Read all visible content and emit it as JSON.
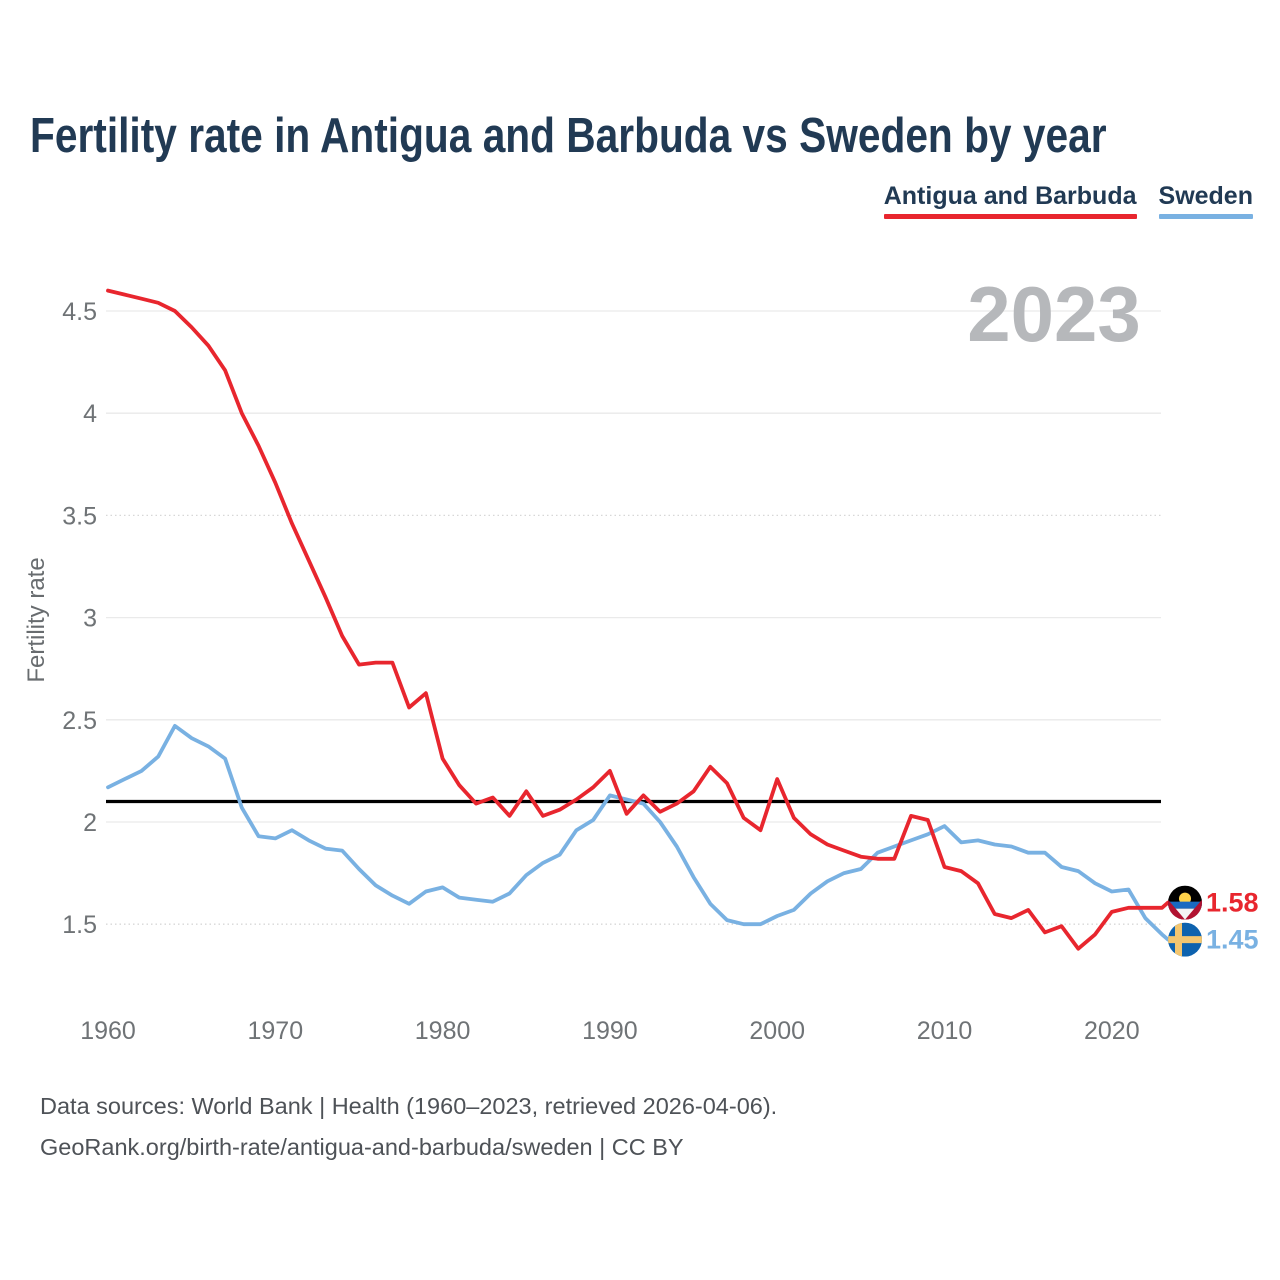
{
  "title": "Fertility rate in Antigua and Barbuda vs Sweden by year",
  "watermark": "2023",
  "legend": [
    {
      "label": "Antigua and Barbuda",
      "color": "#e8262e"
    },
    {
      "label": "Sweden",
      "color": "#79b1e2"
    }
  ],
  "end_labels": {
    "antigua": "1.58",
    "sweden": "1.45"
  },
  "footer": {
    "line1": "Data sources: World Bank | Health (1960–2023, retrieved 2026-04-06).",
    "line2": "GeoRank.org/birth-rate/antigua-and-barbuda/sweden | CC BY"
  },
  "colors": {
    "antigua_line": "#e8262e",
    "sweden_line": "#79b1e2",
    "title_text": "#213a54",
    "tick_text": "#6f7376",
    "gridline": "#eaeaea",
    "reference_line": "#000000",
    "watermark": "#b6b8bb"
  },
  "chart_data": {
    "type": "line",
    "title": "Fertility rate in Antigua and Barbuda vs Sweden by year",
    "xlabel": "",
    "ylabel": "Fertility rate",
    "x_range": [
      1960,
      2023
    ],
    "ylim": [
      1.3,
      4.65
    ],
    "grid": true,
    "legend_position": "top-right",
    "reference_line": {
      "value": 2.1,
      "meaning": "replacement-level fertility"
    },
    "current_year_label": "2023",
    "x": [
      1960,
      1961,
      1962,
      1963,
      1964,
      1965,
      1966,
      1967,
      1968,
      1969,
      1970,
      1971,
      1972,
      1973,
      1974,
      1975,
      1976,
      1977,
      1978,
      1979,
      1980,
      1981,
      1982,
      1983,
      1984,
      1985,
      1986,
      1987,
      1988,
      1989,
      1990,
      1991,
      1992,
      1993,
      1994,
      1995,
      1996,
      1997,
      1998,
      1999,
      2000,
      2001,
      2002,
      2003,
      2004,
      2005,
      2006,
      2007,
      2008,
      2009,
      2010,
      2011,
      2012,
      2013,
      2014,
      2015,
      2016,
      2017,
      2018,
      2019,
      2020,
      2021,
      2022,
      2023
    ],
    "series": [
      {
        "name": "Antigua and Barbuda",
        "color": "#e8262e",
        "end_value": 1.58,
        "values": [
          4.6,
          4.58,
          4.56,
          4.54,
          4.5,
          4.42,
          4.33,
          4.21,
          4.0,
          3.84,
          3.66,
          3.46,
          3.28,
          3.1,
          2.91,
          2.77,
          2.78,
          2.78,
          2.56,
          2.63,
          2.31,
          2.18,
          2.09,
          2.12,
          2.03,
          2.15,
          2.03,
          2.06,
          2.11,
          2.17,
          2.25,
          2.04,
          2.13,
          2.05,
          2.09,
          2.15,
          2.27,
          2.19,
          2.02,
          1.96,
          2.21,
          2.02,
          1.94,
          1.89,
          1.86,
          1.83,
          1.82,
          1.82,
          2.03,
          2.01,
          1.78,
          1.76,
          1.7,
          1.55,
          1.53,
          1.57,
          1.46,
          1.49,
          1.38,
          1.45,
          1.56,
          1.58,
          1.58,
          1.58
        ]
      },
      {
        "name": "Sweden",
        "color": "#79b1e2",
        "end_value": 1.45,
        "values": [
          2.17,
          2.21,
          2.25,
          2.32,
          2.47,
          2.41,
          2.37,
          2.31,
          2.07,
          1.93,
          1.92,
          1.96,
          1.91,
          1.87,
          1.86,
          1.77,
          1.69,
          1.64,
          1.6,
          1.66,
          1.68,
          1.63,
          1.62,
          1.61,
          1.65,
          1.74,
          1.8,
          1.84,
          1.96,
          2.01,
          2.13,
          2.11,
          2.09,
          2.0,
          1.88,
          1.73,
          1.6,
          1.52,
          1.5,
          1.5,
          1.54,
          1.57,
          1.65,
          1.71,
          1.75,
          1.77,
          1.85,
          1.88,
          1.91,
          1.94,
          1.98,
          1.9,
          1.91,
          1.89,
          1.88,
          1.85,
          1.85,
          1.78,
          1.76,
          1.7,
          1.66,
          1.67,
          1.53,
          1.45
        ]
      }
    ],
    "yticks": [
      {
        "value": 4.5,
        "label": "4.5",
        "dotted": false
      },
      {
        "value": 4.0,
        "label": "4",
        "dotted": false
      },
      {
        "value": 3.5,
        "label": "3.5",
        "dotted": true
      },
      {
        "value": 3.0,
        "label": "3",
        "dotted": false
      },
      {
        "value": 2.5,
        "label": "2.5",
        "dotted": false
      },
      {
        "value": 2.0,
        "label": "2",
        "dotted": false
      },
      {
        "value": 1.5,
        "label": "1.5",
        "dotted": true
      }
    ],
    "xticks": [
      {
        "value": 1960,
        "label": "1960"
      },
      {
        "value": 1970,
        "label": "1970"
      },
      {
        "value": 1980,
        "label": "1980"
      },
      {
        "value": 1990,
        "label": "1990"
      },
      {
        "value": 2000,
        "label": "2000"
      },
      {
        "value": 2010,
        "label": "2010"
      },
      {
        "value": 2020,
        "label": "2020"
      }
    ]
  }
}
